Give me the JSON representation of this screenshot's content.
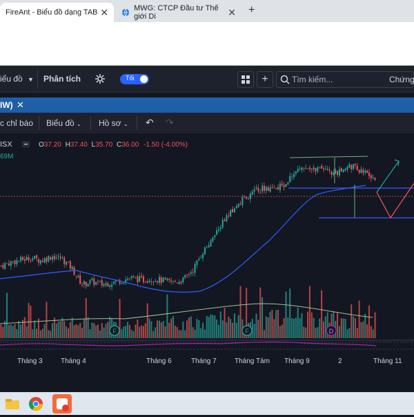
{
  "browser": {
    "tabs": [
      {
        "title": "FireAnt - Biểu đồ dạng TAB",
        "active": true
      },
      {
        "title": "MWG: CTCP Đầu tư Thế giới Di",
        "active": false
      }
    ],
    "new_tab": "+"
  },
  "app": {
    "menu_chart": "iểu đồ",
    "menu_analysis": "Phân tích",
    "theme_toggle": "Tối",
    "search_placeholder": "Tìm kiếm...",
    "search_cut_label": "Chứng",
    "chart_tab": "IW)",
    "toolbar": {
      "indicators": "c chỉ báo",
      "chart": "Biểu đồ",
      "profile": "Hồ sơ"
    }
  },
  "legend": {
    "exchange": "ISX",
    "o_label": "O",
    "o": "37.20",
    "h_label": "H",
    "h": "37.40",
    "l_label": "L",
    "l": "35.70",
    "c_label": "C",
    "c": "36.00",
    "change": "-1.50 (-4.00%)",
    "volume_fragment": "69M"
  },
  "markers": [
    {
      "label": "F"
    },
    {
      "label": "F"
    },
    {
      "label": "D"
    }
  ],
  "x_axis_labels": [
    "Tháng 3",
    "Tháng 4",
    "Tháng 6",
    "Tháng 7",
    "Tháng Tám",
    "Tháng 9",
    "2",
    "Tháng 11"
  ],
  "colors": {
    "up": "#26a69a",
    "down": "#ef5350",
    "ma": "#2962ff",
    "background": "#131722"
  },
  "chart_data": {
    "type": "candlestick",
    "price_series_approx": [
      24.5,
      25.0,
      25.3,
      25.6,
      25.2,
      25.8,
      25.5,
      24.2,
      22.0,
      22.4,
      22.0,
      22.3,
      22.6,
      22.9,
      22.6,
      22.8,
      22.5,
      22.3,
      22.6,
      24.0,
      26.5,
      28.0,
      30.5,
      32.0,
      33.5,
      34.5,
      35.0,
      34.5,
      35.5,
      36.8,
      38.0,
      37.5,
      37.3,
      36.8,
      37.6,
      37.8,
      37.0,
      36.0
    ],
    "last_ohlc": {
      "open": 37.2,
      "high": 37.4,
      "low": 35.7,
      "close": 36.0
    }
  }
}
